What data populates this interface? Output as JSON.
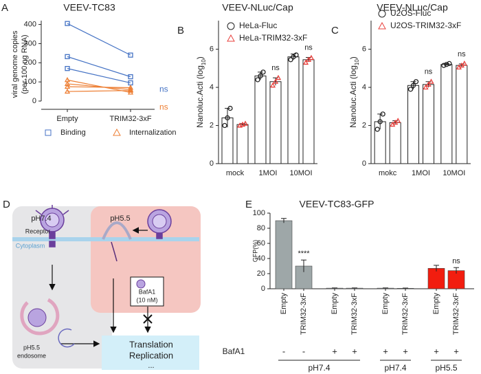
{
  "chart_data": [
    {
      "label": "A",
      "type": "line",
      "title": "VEEV-TC83",
      "y_label": [
        "viral genome copies",
        "(per 100 ng RNA)"
      ],
      "categories": [
        "Empty",
        "TRIM32-3xF"
      ],
      "ylim": [
        0,
        420
      ],
      "yticks": [
        0,
        100,
        200,
        300,
        400
      ],
      "series": [
        {
          "name": "Binding",
          "color": "#4472c4",
          "marker": "square",
          "replicates": [
            [
              405,
              240
            ],
            [
              232,
              127
            ],
            [
              170,
              95
            ]
          ]
        },
        {
          "name": "Internalization",
          "color": "#ed7d31",
          "marker": "triangle",
          "replicates": [
            [
              110,
              45
            ],
            [
              90,
              60
            ],
            [
              75,
              70
            ],
            [
              50,
              55
            ]
          ]
        }
      ],
      "annotations": [
        {
          "text": "ns",
          "series": 0
        },
        {
          "text": "ns",
          "series": 1
        }
      ]
    },
    {
      "label": "B",
      "type": "bar",
      "title": "VEEV-NLuc/Cap",
      "y_label": {
        "text": "Nanoluc.Acti (log",
        "subscript": "10",
        "suffix": ")"
      },
      "categories": [
        "mock",
        "1MOI",
        "10MOI"
      ],
      "ylim": [
        0,
        7.5
      ],
      "yticks": [
        0,
        2,
        4,
        6
      ],
      "series": [
        {
          "name": "HeLa-Fluc",
          "color": "#222222",
          "marker": "circle",
          "values": [
            2.4,
            4.6,
            5.6
          ],
          "errors": [
            0.5,
            0.2,
            0.15
          ],
          "points": [
            [
              2.0,
              2.4,
              2.9
            ],
            [
              4.4,
              4.6,
              4.8
            ],
            [
              5.45,
              5.6,
              5.7
            ]
          ]
        },
        {
          "name": "HeLa-TRIM32-3xF",
          "color": "#e8403c",
          "marker": "triangle",
          "values": [
            2.05,
            4.3,
            5.45
          ],
          "errors": [
            0.05,
            0.2,
            0.12
          ],
          "points": [
            [
              2.0,
              2.05,
              2.1
            ],
            [
              4.1,
              4.3,
              4.5
            ],
            [
              5.3,
              5.45,
              5.55
            ]
          ]
        }
      ],
      "annotations": [
        {
          "text": "ns",
          "category": 1,
          "series": 1
        },
        {
          "text": "ns",
          "category": 2,
          "series": 1
        }
      ]
    },
    {
      "label": "C",
      "type": "bar",
      "title": "VEEV-NLuc/Cap",
      "y_label": {
        "text": "Nanoluc.Acti (log",
        "subscript": "10",
        "suffix": ")"
      },
      "categories": [
        "mokc",
        "1MOI",
        "10MOI"
      ],
      "ylim": [
        0,
        7.5
      ],
      "yticks": [
        0,
        2,
        4,
        6
      ],
      "series": [
        {
          "name": "U2OS-Fluc",
          "color": "#222222",
          "marker": "circle",
          "values": [
            2.2,
            4.1,
            5.2
          ],
          "errors": [
            0.4,
            0.2,
            0.05
          ],
          "points": [
            [
              1.8,
              2.2,
              2.6
            ],
            [
              3.9,
              4.1,
              4.3
            ],
            [
              5.15,
              5.2,
              5.25
            ]
          ]
        },
        {
          "name": "U2OS-TRIM32-3xF",
          "color": "#e8403c",
          "marker": "triangle",
          "values": [
            2.15,
            4.15,
            5.15
          ],
          "errors": [
            0.1,
            0.15,
            0.08
          ],
          "points": [
            [
              2.05,
              2.15,
              2.25
            ],
            [
              4.0,
              4.15,
              4.3
            ],
            [
              5.05,
              5.15,
              5.25
            ]
          ]
        }
      ],
      "annotations": [
        {
          "text": "ns",
          "category": 1,
          "series": 1
        },
        {
          "text": "ns",
          "category": 2,
          "series": 1
        }
      ]
    },
    {
      "label": "E",
      "type": "bar",
      "title": "VEEV-TC83-GFP",
      "y_label": "GFP(%)",
      "categories": [
        "Empty",
        "TRIM32-3xF",
        "Empty",
        "TRIM32-3xF",
        "Empty",
        "TRIM32-3xF",
        "Empty",
        "TRIM32-3xF"
      ],
      "values": [
        90,
        30,
        0.8,
        0.8,
        0.8,
        0.6,
        27,
        24
      ],
      "errors": [
        3,
        8,
        0.3,
        0.3,
        0.3,
        0.3,
        4,
        4
      ],
      "colors": [
        "#9ea7a8",
        "#9ea7a8",
        "#9ea7a8",
        "#9ea7a8",
        "#9ea7a8",
        "#9ea7a8",
        "#f21d0f",
        "#f21d0f"
      ],
      "ylim": [
        0,
        100
      ],
      "yticks": [
        0,
        20,
        40,
        60,
        80,
        100
      ],
      "annotations": [
        {
          "text": "****",
          "bar": 1
        },
        {
          "text": "ns",
          "bar": 7
        }
      ],
      "bafa1": {
        "label": "BafA1",
        "values": [
          "-",
          "-",
          "+",
          "+",
          "+",
          "+",
          "+",
          "+"
        ]
      },
      "groups": [
        {
          "label": "pH7.4"
        },
        {
          "label": "pH7.4"
        },
        {
          "label": "pH5.5"
        }
      ]
    }
  ],
  "diagram": {
    "label": "D",
    "left_ph": "pH7.4",
    "right_ph": "pH5.5",
    "receptor": "Receptor",
    "cytoplasm": "Cytoplasm",
    "drug": "BafA1",
    "dose": "(10 nM)",
    "endosome_ph": "pH5.5",
    "endosome": "endosome",
    "outcome": [
      "Translation",
      "Replication",
      "..."
    ]
  }
}
